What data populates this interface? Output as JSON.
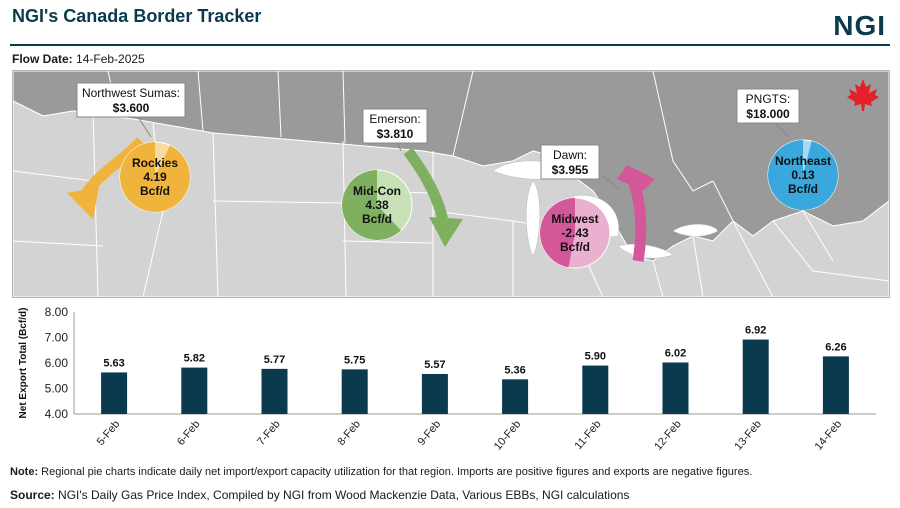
{
  "header": {
    "title": "NGI's Canada Border Tracker",
    "logo": "NGI",
    "flow_date_label": "Flow Date:",
    "flow_date_value": "14-Feb-2025"
  },
  "map": {
    "callouts": [
      {
        "name": "Northwest Sumas:",
        "price": "$3.600"
      },
      {
        "name": "Emerson:",
        "price": "$3.810"
      },
      {
        "name": "Dawn:",
        "price": "$3.955"
      },
      {
        "name": "PNGTS:",
        "price": "$18.000"
      }
    ],
    "pies": [
      {
        "region": "Rockies",
        "value": "4.19",
        "unit": "Bcf/d",
        "utilization": 0.93,
        "color": "#f0b43c",
        "light_color": "#f7dca0"
      },
      {
        "region": "Mid-Con",
        "value": "4.38",
        "unit": "Bcf/d",
        "utilization": 0.62,
        "color": "#7fb05f",
        "light_color": "#c7e0b5"
      },
      {
        "region": "Midwest",
        "value": "-2.43",
        "unit": "Bcf/d",
        "utilization": 0.47,
        "color": "#d4579a",
        "light_color": "#eab0cf"
      },
      {
        "region": "Northeast",
        "value": "0.13",
        "unit": "Bcf/d",
        "utilization": 0.96,
        "color": "#3aa8dc",
        "light_color": "#a8d8ef"
      }
    ],
    "arrow_colors": {
      "west": "#f0b43c",
      "midcon": "#7fb05f",
      "midwest": "#d4579a"
    },
    "icons": [
      "maple-leaf-icon"
    ]
  },
  "chart_data": {
    "type": "bar",
    "categories": [
      "5-Feb",
      "6-Feb",
      "7-Feb",
      "8-Feb",
      "9-Feb",
      "10-Feb",
      "11-Feb",
      "12-Feb",
      "13-Feb",
      "14-Feb"
    ],
    "values": [
      5.63,
      5.82,
      5.77,
      5.75,
      5.57,
      5.36,
      5.9,
      6.02,
      6.92,
      6.26
    ],
    "labels": [
      "5.63",
      "5.82",
      "5.77",
      "5.75",
      "5.57",
      "5.36",
      "5.90",
      "6.02",
      "6.92",
      "6.26"
    ],
    "ylabel": "Net Export Total (Bcf/d)",
    "ylim": [
      4.0,
      8.0
    ],
    "yticks": [
      "4.00",
      "5.00",
      "6.00",
      "7.00",
      "8.00"
    ],
    "bar_color": "#0b3a4f",
    "grid": false
  },
  "footer": {
    "note_label": "Note:",
    "note_text": " Regional pie charts indicate daily net import/export capacity utilization for that region. Imports are positive figures and exports are negative figures.",
    "source_label": "Source:",
    "source_text": " NGI's Daily Gas Price Index, Compiled by NGI from Wood Mackenzie Data, Various EBBs, NGI calculations"
  }
}
